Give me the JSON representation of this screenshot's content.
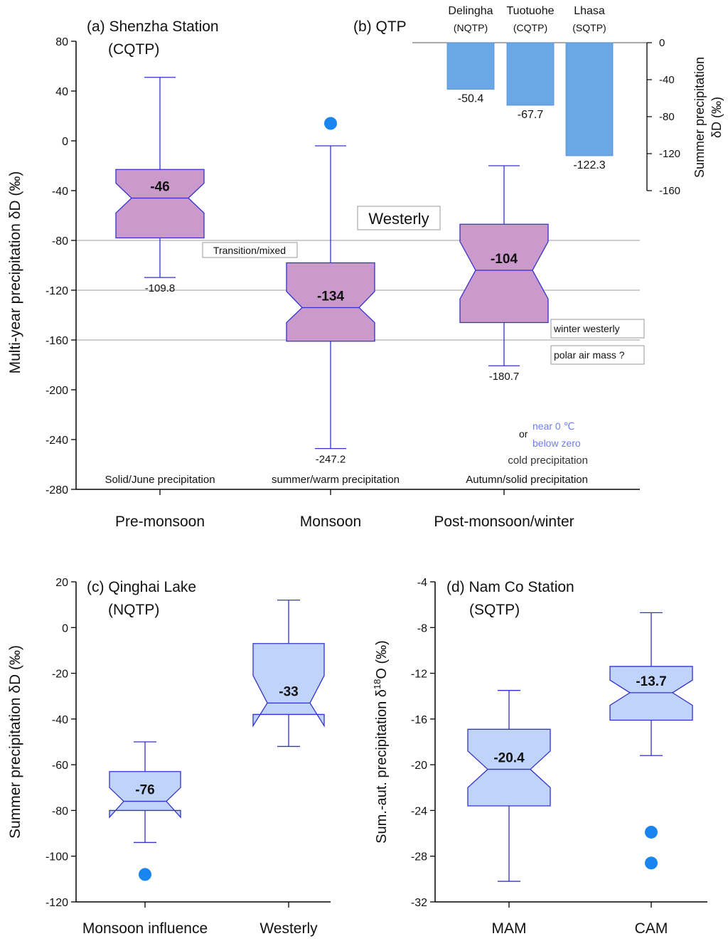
{
  "chart_data": [
    {
      "id": "a",
      "type": "boxplot",
      "title": "(a) Shenzha Station",
      "subtitle": "(CQTP)",
      "ylabel": "Multi-year precipitation δD (‰)",
      "ylim": [
        -280,
        80
      ],
      "yticks": [
        80,
        40,
        0,
        -40,
        -80,
        -120,
        -160,
        -200,
        -240,
        -280
      ],
      "gridlines": [
        -80,
        -120,
        -160
      ],
      "categories": [
        "Pre-monsoon",
        "Monsoon",
        "Post-monsoon/winter"
      ],
      "boxes": [
        {
          "category": "Pre-monsoon",
          "whisker_low": -109.8,
          "q1": -78,
          "median": -46,
          "q3": -23,
          "whisker_high": 51,
          "notch_low": -58,
          "notch_high": -34,
          "median_label": "-46",
          "low_label": "-109.8",
          "outliers": []
        },
        {
          "category": "Monsoon",
          "whisker_low": -247.2,
          "q1": -161,
          "median": -134,
          "q3": -98,
          "whisker_high": -4,
          "notch_low": -146,
          "notch_high": -121,
          "median_label": "-134",
          "low_label": "-247.2",
          "outliers": [
            14
          ]
        },
        {
          "category": "Post-monsoon/winter",
          "whisker_low": -180.7,
          "q1": -146,
          "median": -104,
          "q3": -67,
          "whisker_high": -20,
          "notch_low": -127,
          "notch_high": -81,
          "median_label": "-104",
          "low_label": "-180.7",
          "outliers": []
        }
      ],
      "category_notes": [
        "Solid/June precipitation",
        "summer/warm precipitation",
        "Autumn/solid precipitation"
      ],
      "annotations": {
        "transition": "Transition/mixed",
        "westerly": "Westerly",
        "winter_westerly": "winter westerly",
        "polar_air": "polar air mass ?",
        "or_word": "or",
        "near_zero": "near 0 ℃",
        "below_zero": "below zero",
        "cold_precip": "cold precipitation"
      }
    },
    {
      "id": "b",
      "type": "bar",
      "title": "(b) QTP",
      "ylabel_lines": [
        "Summer precipitation",
        "δD (‰)"
      ],
      "ylim": [
        -160,
        0
      ],
      "yticks": [
        0,
        -40,
        -80,
        -120,
        -160
      ],
      "categories": [
        "Delingha",
        "Tuotuohe",
        "Lhasa"
      ],
      "regions": [
        "(NQTP)",
        "(CQTP)",
        "(SQTP)"
      ],
      "values": [
        -50.4,
        -67.7,
        -122.3
      ],
      "value_labels": [
        "-50.4",
        "-67.7",
        "-122.3"
      ]
    },
    {
      "id": "c",
      "type": "boxplot",
      "title": "(c) Qinghai Lake",
      "subtitle": "(NQTP)",
      "ylabel": "Summer precipitation δD (‰)",
      "ylim": [
        -120,
        20
      ],
      "yticks": [
        20,
        0,
        -20,
        -40,
        -60,
        -80,
        -100,
        -120
      ],
      "categories": [
        "Monsoon influence",
        "Westerly"
      ],
      "boxes": [
        {
          "category": "Monsoon influence",
          "whisker_low": -94,
          "q1": -80,
          "median": -76,
          "q3": -63,
          "whisker_high": -50,
          "notch_low": -83,
          "notch_high": -70,
          "median_label": "-76",
          "outliers": [
            -108
          ]
        },
        {
          "category": "Westerly",
          "whisker_low": -52,
          "q1": -38,
          "median": -33,
          "q3": -7,
          "whisker_high": 12,
          "notch_low": -43,
          "notch_high": -21,
          "median_label": "-33",
          "outliers": []
        }
      ]
    },
    {
      "id": "d",
      "type": "boxplot",
      "title": "(d) Nam Co Station",
      "subtitle": "(SQTP)",
      "ylabel_prefix": "Sum.-aut. precipitation δ",
      "ylabel_sup": "18",
      "ylabel_suffix": "O (‰)",
      "ylim": [
        -32,
        -4
      ],
      "yticks": [
        -4,
        -8,
        -12,
        -16,
        -20,
        -24,
        -28,
        -32
      ],
      "categories": [
        "MAM",
        "CAM"
      ],
      "boxes": [
        {
          "category": "MAM",
          "whisker_low": -30.2,
          "q1": -23.6,
          "median": -20.4,
          "q3": -16.9,
          "whisker_high": -13.5,
          "notch_low": -22,
          "notch_high": -18.8,
          "median_label": "-20.4",
          "outliers": []
        },
        {
          "category": "CAM",
          "whisker_low": -19.2,
          "q1": -16.1,
          "median": -13.7,
          "q3": -11.4,
          "whisker_high": -6.7,
          "notch_low": -14.8,
          "notch_high": -12.6,
          "median_label": "-13.7",
          "outliers": [
            -25.9,
            -28.6
          ]
        }
      ]
    }
  ],
  "colors": {
    "purple_fill": "#cc99cc",
    "box_stroke": "#3333cc",
    "blue_fill": "#bfd3fb",
    "bar_fill": "#6aa7e4",
    "outlier": "#1a85ee",
    "grid": "#b0b0b0",
    "accent_text": "#6f7cf0"
  }
}
